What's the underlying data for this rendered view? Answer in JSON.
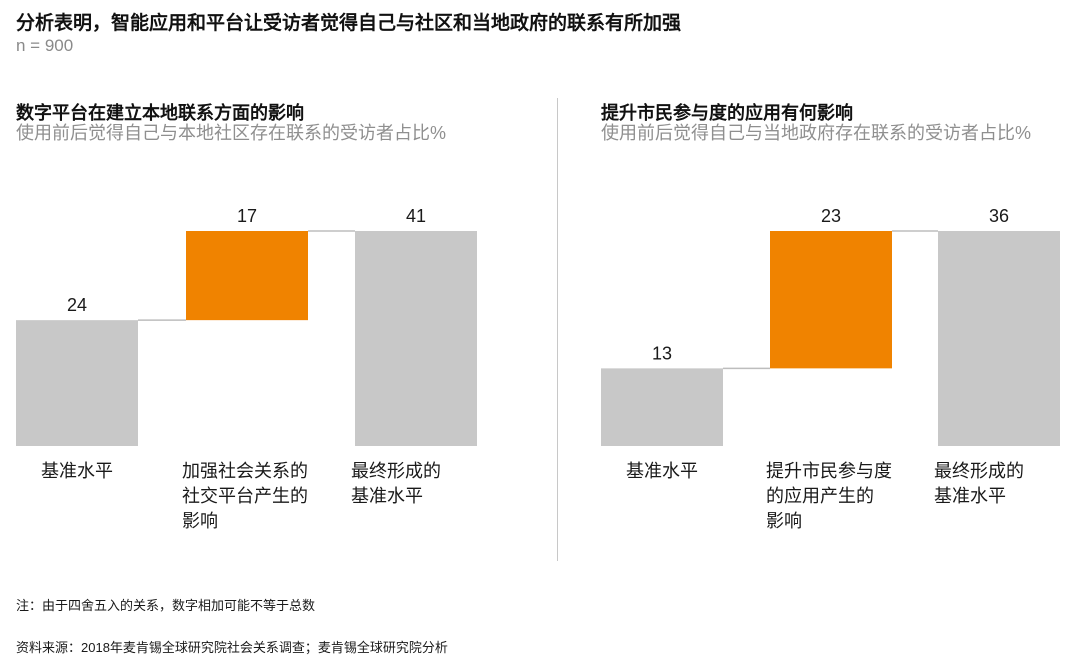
{
  "header": {
    "title": "分析表明，智能应用和平台让受访者觉得自己与社区和当地政府的联系有所加强",
    "sample_size": "n = 900"
  },
  "colors": {
    "base_bar": "#c8c8c8",
    "increase_bar": "#f08300",
    "connector": "#bdbdbd"
  },
  "chart_data": [
    {
      "type": "bar",
      "subtype": "waterfall",
      "title": "数字平台在建立本地联系方面的影响",
      "subtitle": "使用前后觉得自己与本地社区存在联系的受访者占比%",
      "categories": [
        "基准水平",
        "加强社会关系的社交平台产生的影响",
        "最终形成的基准水平"
      ],
      "category_lines": [
        [
          "基准水平"
        ],
        [
          "加强社会关系的",
          "社交平台产生的",
          "影响"
        ],
        [
          "最终形成的",
          "基准水平"
        ]
      ],
      "values": [
        24,
        17,
        41
      ],
      "bar_kinds": [
        "total",
        "increase",
        "total"
      ],
      "ylim": [
        0,
        41
      ]
    },
    {
      "type": "bar",
      "subtype": "waterfall",
      "title": "提升市民参与度的应用有何影响",
      "subtitle": "使用前后觉得自己与当地政府存在联系的受访者占比%",
      "categories": [
        "基准水平",
        "提升市民参与度的应用产生的影响",
        "最终形成的基准水平"
      ],
      "category_lines": [
        [
          "基准水平"
        ],
        [
          "提升市民参与度",
          "的应用产生的",
          "影响"
        ],
        [
          "最终形成的",
          "基准水平"
        ]
      ],
      "values": [
        13,
        23,
        36
      ],
      "bar_kinds": [
        "total",
        "increase",
        "total"
      ],
      "ylim": [
        0,
        36
      ]
    }
  ],
  "footer": {
    "note": "注：由于四舍五入的关系，数字相加可能不等于总数",
    "source": "资料来源：2018年麦肯锡全球研究院社会关系调查；麦肯锡全球研究院分析"
  }
}
